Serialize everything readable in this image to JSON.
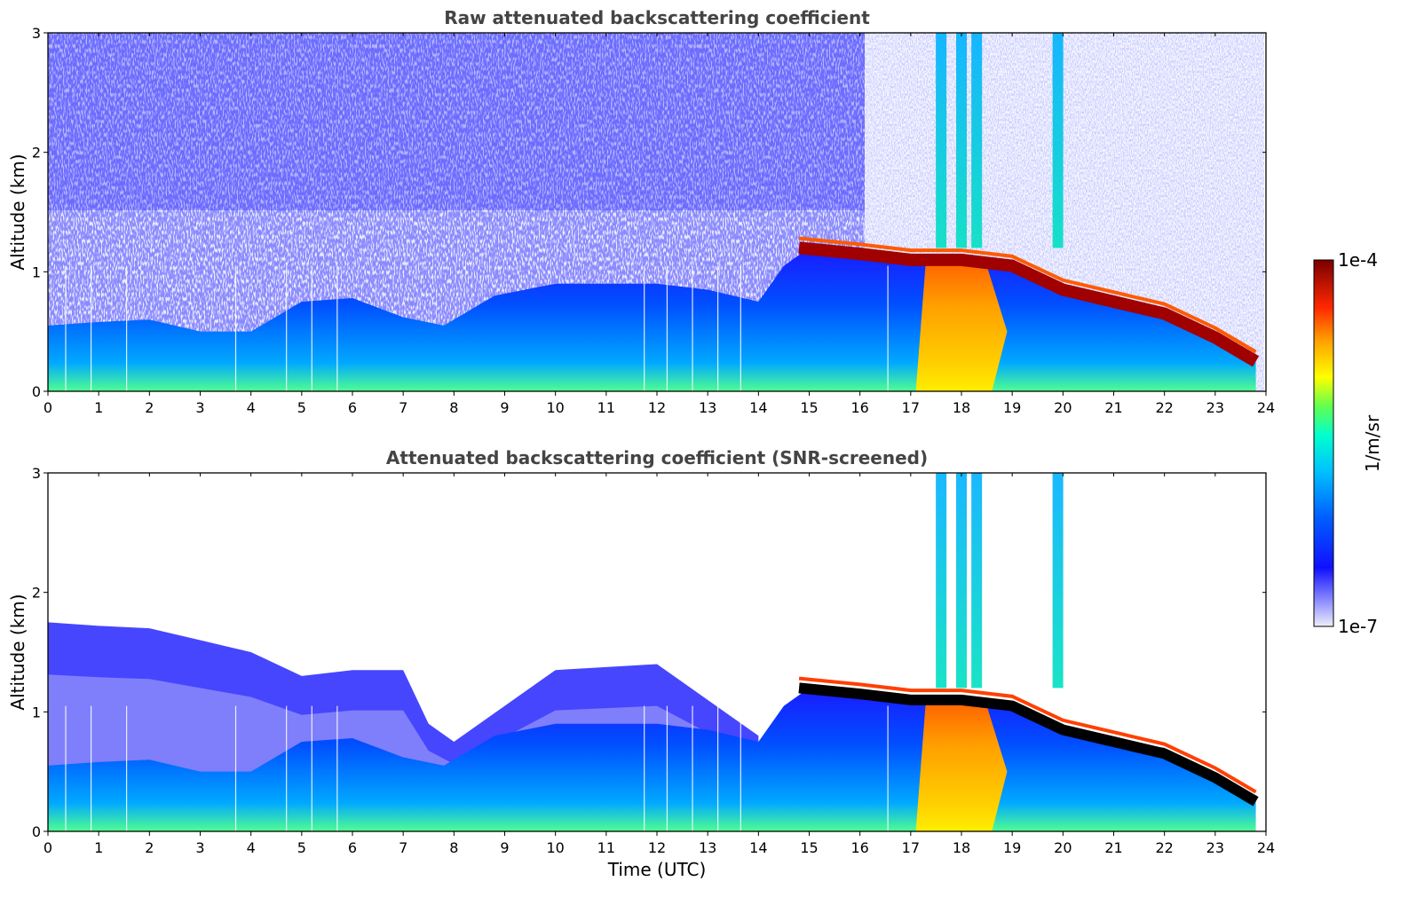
{
  "chart_data": [
    {
      "type": "heatmap",
      "panel": "top",
      "title": "Raw attenuated backscattering coefficient",
      "xlabel": "",
      "ylabel": "Altitude (km)",
      "xlim": [
        0,
        24
      ],
      "ylim": [
        0,
        3
      ],
      "xticks": [
        "0",
        "1",
        "2",
        "3",
        "4",
        "5",
        "6",
        "7",
        "8",
        "9",
        "10",
        "11",
        "12",
        "13",
        "14",
        "15",
        "16",
        "17",
        "18",
        "19",
        "20",
        "21",
        "22",
        "23",
        "24"
      ],
      "yticks": [
        "0",
        "1",
        "2",
        "3"
      ],
      "features": {
        "boundary_layer_top_km": [
          [
            0,
            0.55
          ],
          [
            1,
            0.58
          ],
          [
            2,
            0.6
          ],
          [
            3,
            0.5
          ],
          [
            4,
            0.5
          ],
          [
            5,
            0.75
          ],
          [
            6,
            0.78
          ],
          [
            7,
            0.62
          ],
          [
            7.8,
            0.55
          ],
          [
            8.8,
            0.8
          ],
          [
            10,
            0.9
          ],
          [
            12,
            0.9
          ],
          [
            13,
            0.85
          ],
          [
            14,
            0.75
          ],
          [
            14.5,
            1.05
          ],
          [
            15,
            1.2
          ],
          [
            16,
            1.15
          ],
          [
            17,
            1.08
          ],
          [
            18,
            1.1
          ],
          [
            19,
            1.05
          ],
          [
            19.5,
            0.95
          ],
          [
            20,
            0.85
          ],
          [
            21,
            0.75
          ],
          [
            22,
            0.7
          ],
          [
            23,
            0.45
          ],
          [
            23.8,
            0.25
          ]
        ],
        "cloud_layer_km": [
          [
            14.8,
            1.2
          ],
          [
            16,
            1.15
          ],
          [
            17,
            1.1
          ],
          [
            18,
            1.1
          ],
          [
            19,
            1.05
          ],
          [
            20,
            0.85
          ],
          [
            21,
            0.75
          ],
          [
            22,
            0.65
          ],
          [
            23,
            0.45
          ],
          [
            23.8,
            0.25
          ]
        ],
        "rain_columns_utc": [
          17.6,
          18.0,
          18.3,
          19.9
        ]
      }
    },
    {
      "type": "heatmap",
      "panel": "bottom",
      "title": "Attenuated backscattering coefficient (SNR-screened)",
      "xlabel": "Time (UTC)",
      "ylabel": "Altitude (km)",
      "xlim": [
        0,
        24
      ],
      "ylim": [
        0,
        3
      ],
      "xticks": [
        "0",
        "1",
        "2",
        "3",
        "4",
        "5",
        "6",
        "7",
        "8",
        "9",
        "10",
        "11",
        "12",
        "13",
        "14",
        "15",
        "16",
        "17",
        "18",
        "19",
        "20",
        "21",
        "22",
        "23",
        "24"
      ],
      "yticks": [
        "0",
        "1",
        "2",
        "3"
      ],
      "features": {
        "screened_residual_layer_top_km": [
          [
            0,
            1.75
          ],
          [
            1,
            1.72
          ],
          [
            2,
            1.7
          ],
          [
            3,
            1.6
          ],
          [
            4,
            1.5
          ],
          [
            5,
            1.3
          ],
          [
            6,
            1.35
          ],
          [
            7,
            1.35
          ],
          [
            7.5,
            0.9
          ],
          [
            8,
            0.75
          ],
          [
            10,
            1.35
          ],
          [
            12,
            1.4
          ],
          [
            13,
            1.1
          ],
          [
            14,
            0.8
          ]
        ]
      }
    }
  ],
  "colorbar": {
    "label": "1/m/sr",
    "max_label": "1e-4",
    "min_label": "1e-7",
    "colors": [
      "#e6e6f8",
      "#7a7aff",
      "#0000ff",
      "#005cff",
      "#00b4ff",
      "#00ffd0",
      "#5aff5a",
      "#ffff00",
      "#ffaa00",
      "#ff3300",
      "#cc0000",
      "#7f0000"
    ]
  }
}
